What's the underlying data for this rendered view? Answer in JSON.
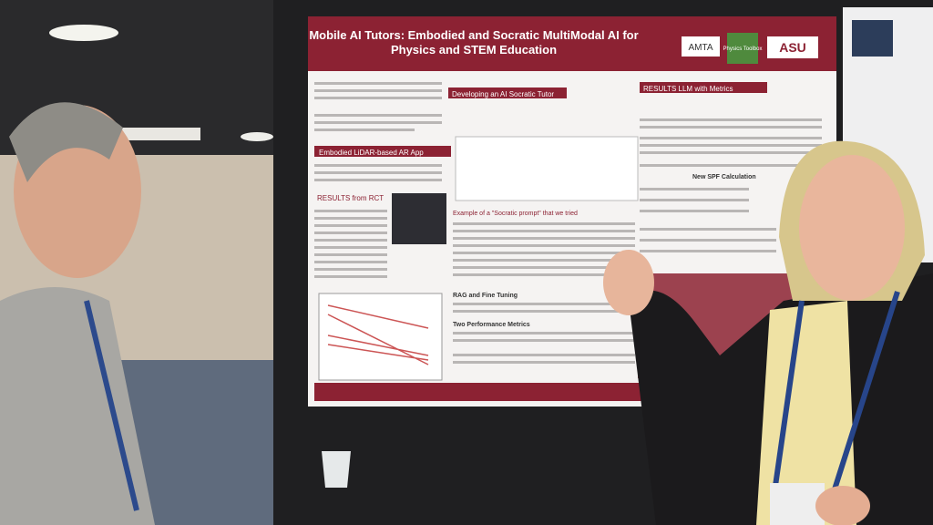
{
  "poster": {
    "title": "Mobile AI Tutors: Embodied and Socratic MultiModal AI for Physics and STEM Education",
    "logos": [
      "AMTA",
      "Physics Toolbox",
      "ASU"
    ],
    "sections": [
      "Embodied LiDAR-based AR App",
      "RESULTS from RCT",
      "Developing an AI Socratic Tutor",
      "Example of a \"Socratic prompt\" that we tried",
      "RAG and Fine Tuning",
      "Two Performance Metrics",
      "RESULTS LLM with Metrics",
      "New SPF Calculation"
    ]
  }
}
